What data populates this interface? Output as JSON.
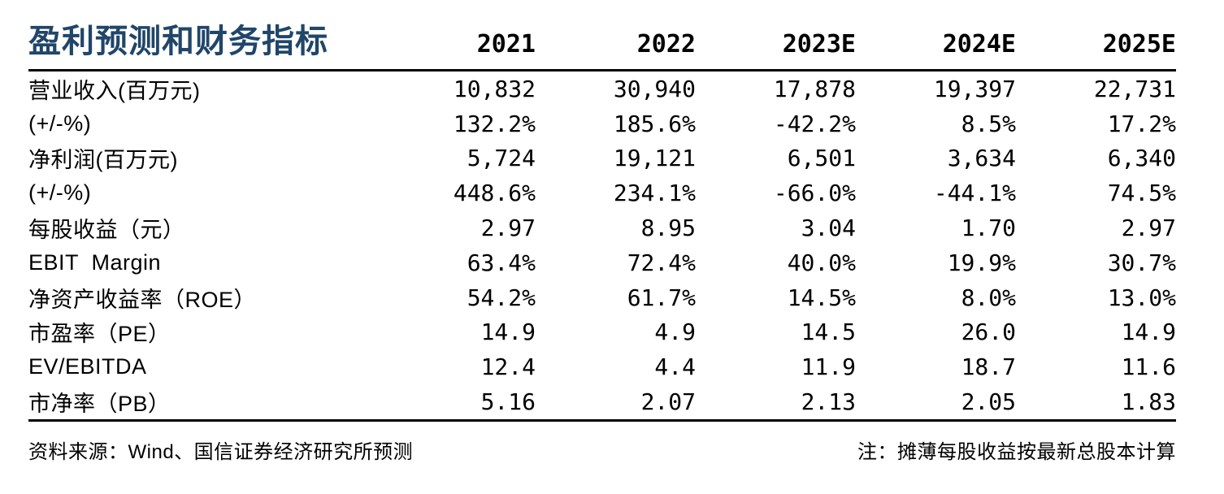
{
  "colors": {
    "title_blue": "#204669",
    "rule_black": "#000000",
    "text_black": "#000000",
    "background": "#ffffff"
  },
  "chart_data": {
    "type": "table",
    "title": "盈利预测和财务指标",
    "columns": [
      "2021",
      "2022",
      "2023E",
      "2024E",
      "2025E"
    ],
    "rows": [
      {
        "label": "营业收入(百万元)",
        "values": [
          "10,832",
          "30,940",
          "17,878",
          "19,397",
          "22,731"
        ]
      },
      {
        "label": "(+/-%)",
        "values": [
          "132.2%",
          "185.6%",
          "-42.2%",
          "8.5%",
          "17.2%"
        ]
      },
      {
        "label": "净利润(百万元)",
        "values": [
          "5,724",
          "19,121",
          "6,501",
          "3,634",
          "6,340"
        ]
      },
      {
        "label": "(+/-%)",
        "values": [
          "448.6%",
          "234.1%",
          "-66.0%",
          "-44.1%",
          "74.5%"
        ]
      },
      {
        "label": "每股收益（元）",
        "values": [
          "2.97",
          "8.95",
          "3.04",
          "1.70",
          "2.97"
        ]
      },
      {
        "label": "EBIT  Margin",
        "values": [
          "63.4%",
          "72.4%",
          "40.0%",
          "19.9%",
          "30.7%"
        ]
      },
      {
        "label": "净资产收益率（ROE）",
        "values": [
          "54.2%",
          "61.7%",
          "14.5%",
          "8.0%",
          "13.0%"
        ]
      },
      {
        "label": "市盈率（PE）",
        "values": [
          "14.9",
          "4.9",
          "14.5",
          "26.0",
          "14.9"
        ]
      },
      {
        "label": "EV/EBITDA",
        "values": [
          "12.4",
          "4.4",
          "11.9",
          "18.7",
          "11.6"
        ]
      },
      {
        "label": "市净率（PB）",
        "values": [
          "5.16",
          "2.07",
          "2.13",
          "2.05",
          "1.83"
        ]
      }
    ]
  },
  "footer": {
    "source": "资料来源：Wind、国信证券经济研究所预测",
    "note": "注：摊薄每股收益按最新总股本计算"
  }
}
